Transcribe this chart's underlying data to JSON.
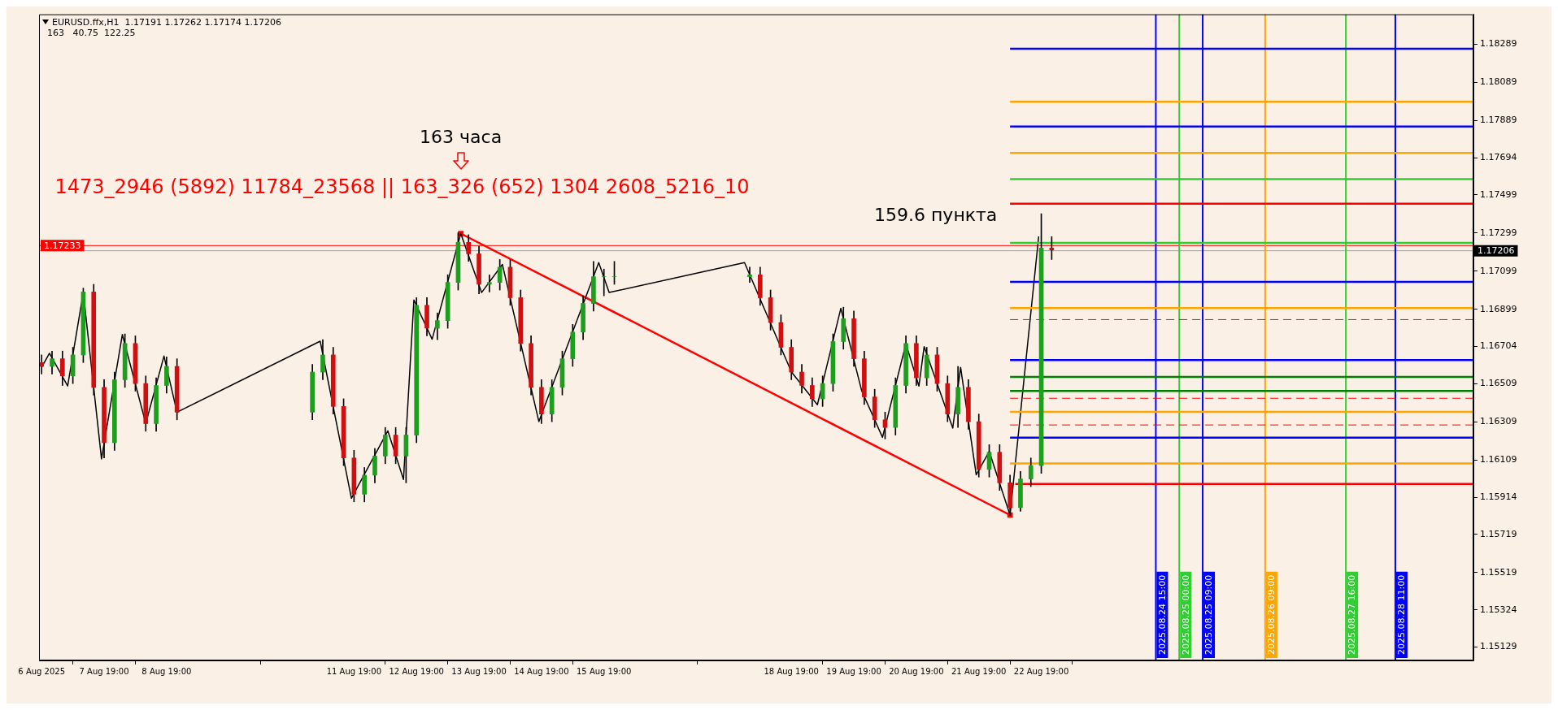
{
  "chart_data": {
    "type": "candlestick",
    "title": "EURUSD.ffx,H1  1.17191 1.17262 1.17174 1.17206",
    "subtitle": "163   40.75  122.25",
    "annotations": [
      "163 часа",
      "1473_2946 (5892) 11784_23568 || 163_326 (652) 1304 2608_5216_10",
      "159.6 пункта"
    ],
    "x": [
      "2025-08-06T19:00",
      "2025-08-06T23:00",
      "2025-08-07T03:00",
      "2025-08-07T07:00",
      "2025-08-07T11:00",
      "2025-08-07T15:00",
      "2025-08-07T19:00",
      "2025-08-07T23:00",
      "2025-08-08T03:00",
      "2025-08-08T07:00",
      "2025-08-08T11:00",
      "2025-08-08T15:00",
      "2025-08-08T19:00",
      "2025-08-08T23:00",
      "2025-08-11T03:00",
      "2025-08-11T07:00",
      "2025-08-11T11:00",
      "2025-08-11T15:00",
      "2025-08-11T19:00",
      "2025-08-11T23:00",
      "2025-08-12T03:00",
      "2025-08-12T07:00",
      "2025-08-12T11:00",
      "2025-08-12T15:00",
      "2025-08-12T19:00",
      "2025-08-12T23:00",
      "2025-08-13T03:00",
      "2025-08-13T07:00",
      "2025-08-13T11:00",
      "2025-08-13T15:00",
      "2025-08-13T19:00",
      "2025-08-13T23:00",
      "2025-08-14T03:00",
      "2025-08-14T07:00",
      "2025-08-14T11:00",
      "2025-08-14T15:00",
      "2025-08-14T19:00",
      "2025-08-14T23:00",
      "2025-08-15T03:00",
      "2025-08-15T07:00",
      "2025-08-15T11:00",
      "2025-08-15T15:00",
      "2025-08-15T19:00",
      "2025-08-15T23:00",
      "2025-08-18T03:00",
      "2025-08-18T07:00",
      "2025-08-18T11:00",
      "2025-08-18T15:00",
      "2025-08-18T19:00",
      "2025-08-18T23:00",
      "2025-08-19T03:00",
      "2025-08-19T07:00",
      "2025-08-19T11:00",
      "2025-08-19T15:00",
      "2025-08-19T19:00",
      "2025-08-19T23:00",
      "2025-08-20T03:00",
      "2025-08-20T07:00",
      "2025-08-20T11:00",
      "2025-08-20T15:00",
      "2025-08-20T19:00",
      "2025-08-20T23:00",
      "2025-08-21T03:00",
      "2025-08-21T07:00",
      "2025-08-21T11:00",
      "2025-08-21T15:00",
      "2025-08-21T19:00",
      "2025-08-21T23:00",
      "2025-08-22T03:00",
      "2025-08-22T07:00",
      "2025-08-22T11:00",
      "2025-08-22T15:00",
      "2025-08-22T19:00",
      "2025-08-22T23:00"
    ],
    "ohlc": [
      [
        1.1662,
        1.1666,
        1.1656,
        1.166
      ],
      [
        1.166,
        1.1668,
        1.1656,
        1.1664
      ],
      [
        1.1664,
        1.1668,
        1.165,
        1.1655
      ],
      [
        1.1655,
        1.167,
        1.1651,
        1.1666
      ],
      [
        1.1666,
        1.1701,
        1.1662,
        1.1699
      ],
      [
        1.1699,
        1.1703,
        1.1645,
        1.1649
      ],
      [
        1.1649,
        1.1653,
        1.1612,
        1.162
      ],
      [
        1.162,
        1.1657,
        1.1616,
        1.1653
      ],
      [
        1.1653,
        1.1677,
        1.1649,
        1.1672
      ],
      [
        1.1672,
        1.1676,
        1.1647,
        1.1651
      ],
      [
        1.1651,
        1.1655,
        1.1626,
        1.163
      ],
      [
        1.163,
        1.1654,
        1.1626,
        1.165
      ],
      [
        1.165,
        1.1665,
        1.1646,
        1.166
      ],
      [
        1.166,
        1.1664,
        1.1632,
        1.1636
      ],
      [
        1.1636,
        1.1661,
        1.1632,
        1.1657
      ],
      [
        1.1657,
        1.1674,
        1.1653,
        1.1666
      ],
      [
        1.1666,
        1.167,
        1.1635,
        1.1639
      ],
      [
        1.1639,
        1.1643,
        1.1608,
        1.1612
      ],
      [
        1.1612,
        1.1616,
        1.1589,
        1.1593
      ],
      [
        1.1593,
        1.1607,
        1.1589,
        1.1603
      ],
      [
        1.1603,
        1.1617,
        1.1599,
        1.1613
      ],
      [
        1.1613,
        1.1628,
        1.1609,
        1.1624
      ],
      [
        1.1624,
        1.1628,
        1.1609,
        1.1613
      ],
      [
        1.1613,
        1.1628,
        1.1599,
        1.1624
      ],
      [
        1.1624,
        1.1696,
        1.162,
        1.1692
      ],
      [
        1.1692,
        1.1696,
        1.1676,
        1.168
      ],
      [
        1.168,
        1.1688,
        1.1674,
        1.1684
      ],
      [
        1.1684,
        1.1708,
        1.168,
        1.1704
      ],
      [
        1.1704,
        1.173,
        1.17,
        1.1725
      ],
      [
        1.1725,
        1.1729,
        1.1715,
        1.1719
      ],
      [
        1.1719,
        1.1723,
        1.1698,
        1.1703
      ],
      [
        1.1703,
        1.1708,
        1.1699,
        1.1704
      ],
      [
        1.1704,
        1.1716,
        1.17,
        1.1712
      ],
      [
        1.1712,
        1.1716,
        1.1692,
        1.1696
      ],
      [
        1.1696,
        1.17,
        1.1668,
        1.1672
      ],
      [
        1.1672,
        1.1676,
        1.1645,
        1.1649
      ],
      [
        1.1649,
        1.1653,
        1.163,
        1.1635
      ],
      [
        1.1635,
        1.1653,
        1.1631,
        1.1649
      ],
      [
        1.1649,
        1.1668,
        1.1645,
        1.1664
      ],
      [
        1.1664,
        1.1682,
        1.166,
        1.1678
      ],
      [
        1.1678,
        1.1697,
        1.1674,
        1.1693
      ],
      [
        1.1693,
        1.1715,
        1.1689,
        1.1707
      ],
      [
        1.1707,
        1.1711,
        1.1697,
        1.1707
      ],
      [
        1.1707,
        1.1715,
        1.1703,
        1.1707
      ],
      [
        1.1707,
        1.1712,
        1.1704,
        1.1708
      ],
      [
        1.1708,
        1.1712,
        1.1692,
        1.1696
      ],
      [
        1.1696,
        1.17,
        1.1679,
        1.1683
      ],
      [
        1.1683,
        1.1687,
        1.1666,
        1.167
      ],
      [
        1.167,
        1.1674,
        1.1653,
        1.1657
      ],
      [
        1.1657,
        1.1661,
        1.1646,
        1.165
      ],
      [
        1.165,
        1.1654,
        1.1639,
        1.1643
      ],
      [
        1.1643,
        1.1655,
        1.1639,
        1.1651
      ],
      [
        1.1651,
        1.1677,
        1.1647,
        1.1673
      ],
      [
        1.1673,
        1.1691,
        1.1669,
        1.1685
      ],
      [
        1.1685,
        1.1689,
        1.166,
        1.1664
      ],
      [
        1.1664,
        1.1668,
        1.164,
        1.1644
      ],
      [
        1.1644,
        1.1648,
        1.1628,
        1.1632
      ],
      [
        1.1632,
        1.1636,
        1.1622,
        1.1628
      ],
      [
        1.1628,
        1.1654,
        1.1624,
        1.165
      ],
      [
        1.165,
        1.1676,
        1.1646,
        1.1672
      ],
      [
        1.1672,
        1.1676,
        1.165,
        1.1654
      ],
      [
        1.1654,
        1.167,
        1.165,
        1.1666
      ],
      [
        1.1666,
        1.167,
        1.1647,
        1.1651
      ],
      [
        1.1651,
        1.1655,
        1.1631,
        1.1635
      ],
      [
        1.1635,
        1.166,
        1.1628,
        1.1649
      ],
      [
        1.1649,
        1.1653,
        1.1627,
        1.1631
      ],
      [
        1.1631,
        1.1635,
        1.1602,
        1.1606
      ],
      [
        1.1606,
        1.1619,
        1.1602,
        1.1615
      ],
      [
        1.1615,
        1.1619,
        1.1595,
        1.1599
      ],
      [
        1.1599,
        1.1603,
        1.1582,
        1.1586
      ],
      [
        1.1586,
        1.1605,
        1.1584,
        1.1601
      ],
      [
        1.1601,
        1.1612,
        1.1597,
        1.1608
      ],
      [
        1.1608,
        1.174,
        1.1604,
        1.1722
      ],
      [
        1.1722,
        1.1728,
        1.1716,
        1.1721
      ]
    ],
    "colors": [
      "#d01010",
      "#1e9e1e",
      "#d01010",
      "#1e9e1e",
      "#1e9e1e",
      "#d01010",
      "#d01010",
      "#1e9e1e",
      "#1e9e1e",
      "#d01010",
      "#d01010",
      "#1e9e1e",
      "#1e9e1e",
      "#d01010",
      "#1e9e1e",
      "#1e9e1e",
      "#d01010",
      "#d01010",
      "#d01010",
      "#1e9e1e",
      "#1e9e1e",
      "#1e9e1e",
      "#d01010",
      "#1e9e1e",
      "#1e9e1e",
      "#d01010",
      "#1e9e1e",
      "#1e9e1e",
      "#1e9e1e",
      "#d01010",
      "#d01010",
      "#1e9e1e",
      "#1e9e1e",
      "#d01010",
      "#d01010",
      "#d01010",
      "#d01010",
      "#1e9e1e",
      "#1e9e1e",
      "#1e9e1e",
      "#1e9e1e",
      "#1e9e1e",
      "#1e9e1e",
      "#1e9e1e",
      "#1e9e1e",
      "#d01010",
      "#d01010",
      "#d01010",
      "#d01010",
      "#d01010",
      "#d01010",
      "#1e9e1e",
      "#1e9e1e",
      "#1e9e1e",
      "#d01010",
      "#d01010",
      "#d01010",
      "#d01010",
      "#1e9e1e",
      "#1e9e1e",
      "#d01010",
      "#1e9e1e",
      "#d01010",
      "#d01010",
      "#1e9e1e",
      "#d01010",
      "#d01010",
      "#1e9e1e",
      "#d01010",
      "#d01010",
      "#1e9e1e",
      "#1e9e1e",
      "#1e9e1e",
      "#d01010"
    ],
    "series": [
      {
        "type": "line",
        "color": "#000000",
        "x": [
          "2025-08-06T19:00",
          "2025-08-06T22:00",
          "2025-08-07T05:00",
          "2025-08-07T11:00",
          "2025-08-07T18:00",
          "2025-08-08T02:00",
          "2025-08-08T11:00",
          "2025-08-08T18:00",
          "2025-08-08T23:00",
          "2025-08-11T06:00",
          "2025-08-11T18:00",
          "2025-08-12T08:00",
          "2025-08-12T14:00",
          "2025-08-12T18:00",
          "2025-08-13T01:00",
          "2025-08-13T12:00",
          "2025-08-13T20:00",
          "2025-08-14T04:00",
          "2025-08-14T18:00",
          "2025-08-15T17:00",
          "2025-08-15T21:00",
          "2025-08-18T01:00",
          "2025-08-18T19:00",
          "2025-08-19T05:00",
          "2025-08-19T14:00",
          "2025-08-19T22:00",
          "2025-08-20T06:00",
          "2025-08-20T15:00",
          "2025-08-20T20:00",
          "2025-08-20T22:00",
          "2025-08-21T09:00",
          "2025-08-21T12:00",
          "2025-08-21T18:00",
          "2025-08-21T23:00",
          "2025-08-22T07:00",
          "2025-08-22T18:00"
        ],
        "values": [
          1.16595,
          1.16669,
          1.16497,
          1.16987,
          1.16115,
          1.16767,
          1.16301,
          1.16654,
          1.1636,
          1.16732,
          1.15909,
          1.16262,
          1.16007,
          1.16948,
          1.16742,
          1.17296,
          1.16987,
          1.17134,
          1.16311,
          1.17144,
          1.16987,
          1.17144,
          1.16571,
          1.16399,
          1.16904,
          1.16473,
          1.16228,
          1.16718,
          1.16497,
          1.16703,
          1.16277,
          1.16595,
          1.16032,
          1.16154,
          1.15821,
          1.17281
        ]
      },
      {
        "type": "line",
        "color": "#ff0000",
        "marker": "square",
        "x": [
          "2025-08-13T12:00",
          "2025-08-22T07:00"
        ],
        "values": [
          1.17296,
          1.15821
        ]
      },
      {
        "type": "line",
        "color": "#0000ff",
        "x": [
          "2025-08-22T07:00",
          "2025-08-29T17:00"
        ],
        "values": [
          1.18265,
          1.18265
        ]
      },
      {
        "type": "line",
        "color": "#ffa500",
        "x": [
          "2025-08-22T07:00",
          "2025-08-29T17:00"
        ],
        "values": [
          1.17987,
          1.17987
        ]
      },
      {
        "type": "line",
        "color": "#0000ff",
        "x": [
          "2025-08-22T07:00",
          "2025-08-29T17:00"
        ],
        "values": [
          1.17857,
          1.17857
        ]
      },
      {
        "type": "line",
        "color": "#ffa500",
        "x": [
          "2025-08-22T07:00",
          "2025-08-29T17:00"
        ],
        "values": [
          1.17719,
          1.17719
        ]
      },
      {
        "type": "line",
        "color": "#32cd32",
        "x": [
          "2025-08-22T07:00",
          "2025-08-29T17:00"
        ],
        "values": [
          1.17581,
          1.17581
        ]
      },
      {
        "type": "line",
        "color": "#ff0000",
        "x": [
          "2025-08-22T07:00",
          "2025-08-29T17:00"
        ],
        "values": [
          1.17453,
          1.17453
        ]
      },
      {
        "type": "line",
        "color": "#32cd32",
        "x": [
          "2025-08-22T07:00",
          "2025-08-29T17:00"
        ],
        "values": [
          1.17247,
          1.17247
        ]
      },
      {
        "type": "line",
        "color": "#0000ff",
        "x": [
          "2025-08-22T07:00",
          "2025-08-29T17:00"
        ],
        "values": [
          1.17043,
          1.17043
        ]
      },
      {
        "type": "line",
        "color": "#ffa500",
        "x": [
          "2025-08-22T07:00",
          "2025-08-29T17:00"
        ],
        "values": [
          1.16905,
          1.16905
        ]
      },
      {
        "type": "line",
        "color": "#ff0000",
        "line_style": "dashed",
        "x": [
          "2025-08-22T07:00",
          "2025-08-29T17:00"
        ],
        "values": [
          1.16845,
          1.16845
        ]
      },
      {
        "type": "line",
        "color": "#0000ff",
        "x": [
          "2025-08-22T07:00",
          "2025-08-29T17:00"
        ],
        "values": [
          1.16633,
          1.16633
        ]
      },
      {
        "type": "line",
        "color": "#008000",
        "x": [
          "2025-08-22T07:00",
          "2025-08-29T17:00"
        ],
        "values": [
          1.16545,
          1.16545
        ]
      },
      {
        "type": "line",
        "color": "#008000",
        "x": [
          "2025-08-22T07:00",
          "2025-08-29T17:00"
        ],
        "values": [
          1.16471,
          1.16471
        ]
      },
      {
        "type": "line",
        "color": "#ff0000",
        "line_style": "dashed",
        "x": [
          "2025-08-22T07:00",
          "2025-08-29T17:00"
        ],
        "values": [
          1.16433,
          1.16433
        ]
      },
      {
        "type": "line",
        "color": "#ffa500",
        "x": [
          "2025-08-22T07:00",
          "2025-08-29T17:00"
        ],
        "values": [
          1.16362,
          1.16362
        ]
      },
      {
        "type": "line",
        "color": "#ff0000",
        "line_style": "dashed",
        "x": [
          "2025-08-22T07:00",
          "2025-08-29T17:00"
        ],
        "values": [
          1.16293,
          1.16293
        ]
      },
      {
        "type": "line",
        "color": "#0000ff",
        "x": [
          "2025-08-22T07:00",
          "2025-08-29T17:00"
        ],
        "values": [
          1.16227,
          1.16227
        ]
      },
      {
        "type": "line",
        "color": "#ffa500",
        "x": [
          "2025-08-22T07:00",
          "2025-08-29T17:00"
        ],
        "values": [
          1.16091,
          1.16091
        ]
      },
      {
        "type": "line",
        "color": "#ff0000",
        "x": [
          "2025-08-22T09:00",
          "2025-08-29T17:00"
        ],
        "values": [
          1.15984,
          1.15984
        ]
      }
    ],
    "xlim": [
      "2025-08-06T18:00",
      "2025-08-29T17:00"
    ],
    "xticks": [
      {
        "value": "2025-08-06T19:00",
        "label": "6 Aug 2025"
      },
      {
        "value": "2025-08-07T19:00",
        "label": "7 Aug 19:00"
      },
      {
        "value": "2025-08-08T19:00",
        "label": "8 Aug 19:00"
      },
      {
        "value": "2025-08-11T19:00",
        "label": "11 Aug 19:00"
      },
      {
        "value": "2025-08-12T19:00",
        "label": "12 Aug 19:00"
      },
      {
        "value": "2025-08-13T19:00",
        "label": "13 Aug 19:00"
      },
      {
        "value": "2025-08-14T19:00",
        "label": "14 Aug 19:00"
      },
      {
        "value": "2025-08-15T19:00",
        "label": "15 Aug 19:00"
      },
      {
        "value": "2025-08-18T19:00",
        "label": "18 Aug 19:00"
      },
      {
        "value": "2025-08-19T19:00",
        "label": "19 Aug 19:00"
      },
      {
        "value": "2025-08-20T19:00",
        "label": "20 Aug 19:00"
      },
      {
        "value": "2025-08-21T19:00",
        "label": "21 Aug 19:00"
      },
      {
        "value": "2025-08-22T19:00",
        "label": "22 Aug 19:00"
      }
    ],
    "ylim": [
      1.15059,
      1.18445
    ],
    "yticks": [
      1.15129,
      1.15324,
      1.15519,
      1.15719,
      1.15914,
      1.16109,
      1.16309,
      1.16509,
      1.16704,
      1.16899,
      1.17099,
      1.17299,
      1.17499,
      1.17694,
      1.17889,
      1.18089,
      1.18289
    ],
    "ref_lines": [
      {
        "axis": "y",
        "value": 1.17206,
        "label": "1.17206",
        "color": "#a0a0a0"
      },
      {
        "axis": "y",
        "value": 1.17233,
        "label": "1.17233",
        "color": "#ff0000"
      },
      {
        "axis": "x",
        "value": "2025-08-24T15:00",
        "label": "2025.08.24 15:00",
        "color": "#0000ff"
      },
      {
        "axis": "x",
        "value": "2025-08-25T00:00",
        "label": "2025.08.25 00:00",
        "color": "#32cd32"
      },
      {
        "axis": "x",
        "value": "2025-08-25T09:00",
        "label": "2025.08.25 09:00",
        "color": "#0000ff"
      },
      {
        "axis": "x",
        "value": "2025-08-26T09:00",
        "label": "2025.08.26 09:00",
        "color": "#ffa500"
      },
      {
        "axis": "x",
        "value": "2025-08-27T16:00",
        "label": "2025.08.27 16:00",
        "color": "#32cd32"
      },
      {
        "axis": "x",
        "value": "2025-08-28T11:00",
        "label": "2025.08.28 11:00",
        "color": "#0000ff"
      }
    ]
  }
}
